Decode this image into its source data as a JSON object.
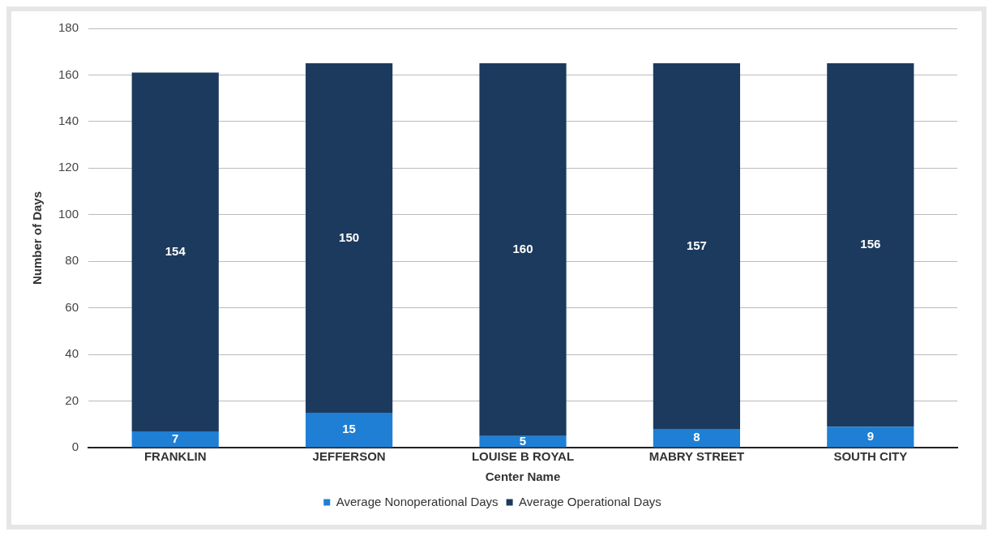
{
  "chart_data": {
    "type": "bar",
    "stacked": true,
    "xlabel": "Center Name",
    "ylabel": "Number of Days",
    "categories": [
      "FRANKLIN",
      "JEFFERSON",
      "LOUISE B ROYAL",
      "MABRY STREET",
      "SOUTH CITY"
    ],
    "series": [
      {
        "name": "Average Nonoperational Days",
        "color": "#1e7fd4",
        "values": [
          7,
          15,
          5,
          8,
          9
        ]
      },
      {
        "name": "Average Operational Days",
        "color": "#1c3a5e",
        "values": [
          154,
          150,
          160,
          157,
          156
        ]
      }
    ],
    "ylim": [
      0,
      180
    ],
    "yticks": [
      0,
      20,
      40,
      60,
      80,
      100,
      120,
      140,
      160,
      180
    ],
    "grid": "y",
    "legend": "bottom",
    "data_labels": true
  }
}
